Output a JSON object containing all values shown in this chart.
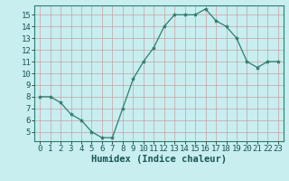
{
  "x": [
    0,
    1,
    2,
    3,
    4,
    5,
    6,
    7,
    8,
    9,
    10,
    11,
    12,
    13,
    14,
    15,
    16,
    17,
    18,
    19,
    20,
    21,
    22,
    23
  ],
  "y": [
    8,
    8,
    7.5,
    6.5,
    6,
    5,
    4.5,
    4.5,
    7,
    9.5,
    11,
    12.2,
    14,
    15,
    15,
    15,
    15.5,
    14.5,
    14,
    13,
    11,
    10.5,
    11,
    11
  ],
  "line_color": "#2e7d6e",
  "marker": "*",
  "marker_size": 3,
  "bg_color": "#c8eef0",
  "grid_color": "#c8a0a0",
  "xlabel": "Humidex (Indice chaleur)",
  "xlim": [
    -0.5,
    23.5
  ],
  "ylim": [
    4.2,
    15.8
  ],
  "yticks": [
    5,
    6,
    7,
    8,
    9,
    10,
    11,
    12,
    13,
    14,
    15
  ],
  "xticks": [
    0,
    1,
    2,
    3,
    4,
    5,
    6,
    7,
    8,
    9,
    10,
    11,
    12,
    13,
    14,
    15,
    16,
    17,
    18,
    19,
    20,
    21,
    22,
    23
  ],
  "tick_fontsize": 6.5,
  "xlabel_fontsize": 7.5
}
